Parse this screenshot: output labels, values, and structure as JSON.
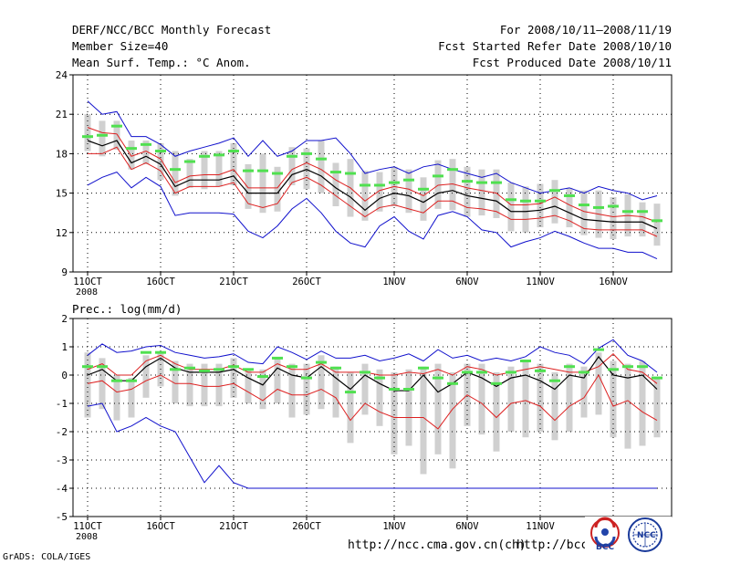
{
  "header": {
    "title": "DERF/NCC/BCC Monthly Forecast",
    "member_size": "Member Size=40",
    "variable": "Mean Surf. Temp.: °C Anom.",
    "period": "For 2008/10/11–2008/11/19",
    "started": "Fcst Started Refer Date 2008/10/10",
    "produced": "Fcst Produced Date 2008/10/11"
  },
  "footer": {
    "grads": "GrADS: COLA/IGES",
    "url1": "http://ncc.cma.gov.cn(ch)",
    "url2": "http://bcc.cma.",
    "logo_bcc": "BCC",
    "logo_ncc": "NCC"
  },
  "colors": {
    "ensemble_mean": "#000000",
    "spread": "#dd2020",
    "extreme": "#1010cc",
    "box": "#d0d0d0",
    "median": "#50e050",
    "grid": "#000000"
  },
  "chart_data": [
    {
      "type": "line",
      "title": "Mean Surf. Temp.: °C Anom.",
      "ylim": [
        9,
        24
      ],
      "yticks": [
        9,
        12,
        15,
        18,
        21,
        24
      ],
      "x": [
        1,
        2,
        3,
        4,
        5,
        6,
        7,
        8,
        9,
        10,
        11,
        12,
        13,
        14,
        15,
        16,
        17,
        18,
        19,
        20,
        21,
        22,
        23,
        24,
        25,
        26,
        27,
        28,
        29,
        30,
        31,
        32,
        33,
        34,
        35,
        36,
        37,
        38,
        39,
        40
      ],
      "xticks": [
        {
          "day": 1,
          "label": "11OCT",
          "sub": "2008"
        },
        {
          "day": 6,
          "label": "16OCT",
          "sub": ""
        },
        {
          "day": 11,
          "label": "21OCT",
          "sub": ""
        },
        {
          "day": 16,
          "label": "26OCT",
          "sub": ""
        },
        {
          "day": 22,
          "label": "1NOV",
          "sub": ""
        },
        {
          "day": 27,
          "label": "6NOV",
          "sub": ""
        },
        {
          "day": 32,
          "label": "11NOV",
          "sub": ""
        },
        {
          "day": 37,
          "label": "16NOV",
          "sub": ""
        }
      ],
      "series": [
        {
          "name": "max",
          "values": [
            22,
            21,
            21.2,
            19.3,
            19.3,
            18.7,
            17.8,
            18.2,
            18.5,
            18.8,
            19.2,
            17.8,
            19,
            17.8,
            18.2,
            19,
            19,
            19.2,
            18,
            16.5,
            16.8,
            17,
            16.5,
            17,
            17.2,
            16.8,
            16.5,
            16.2,
            16.5,
            15.8,
            15.4,
            15,
            15.2,
            15.4,
            15,
            15.5,
            15.2,
            15,
            14.5,
            14.8
          ]
        },
        {
          "name": "upper",
          "values": [
            20,
            19.6,
            19.5,
            17.8,
            18.2,
            17.6,
            15.8,
            16.3,
            16.4,
            16.4,
            16.8,
            15.4,
            15.4,
            15.4,
            16.8,
            17.3,
            16.8,
            16,
            15.4,
            14.4,
            15.2,
            15.5,
            15.3,
            14.8,
            15.6,
            15.7,
            15.4,
            15.2,
            15,
            14.1,
            14.1,
            14.2,
            14.7,
            14.1,
            13.6,
            13.4,
            13.2,
            13.3,
            13.2,
            12.8
          ]
        },
        {
          "name": "mean",
          "values": [
            19,
            18.6,
            19,
            17.3,
            17.8,
            17.2,
            15.5,
            16,
            16,
            16,
            16.3,
            15,
            15,
            15,
            16.4,
            16.8,
            16.3,
            15.4,
            14.7,
            13.7,
            14.6,
            15,
            14.8,
            14.3,
            15,
            15.2,
            14.8,
            14.6,
            14.4,
            13.6,
            13.6,
            13.7,
            14,
            13.5,
            13,
            12.9,
            12.8,
            12.8,
            12.8,
            12.3
          ]
        },
        {
          "name": "lower",
          "values": [
            18,
            18,
            18.5,
            16.8,
            17.3,
            16.7,
            15,
            15.5,
            15.5,
            15.5,
            15.8,
            14.2,
            13.9,
            14.2,
            15.8,
            16.2,
            15.6,
            14.8,
            14,
            13.2,
            13.9,
            14.1,
            13.8,
            13.5,
            14.4,
            14.4,
            13.9,
            13.8,
            13.6,
            13,
            13,
            13.1,
            13.3,
            12.9,
            12.3,
            12.2,
            12.2,
            12.2,
            12.2,
            11.7
          ]
        },
        {
          "name": "min",
          "values": [
            15.6,
            16.2,
            16.6,
            15.4,
            16.2,
            15.5,
            13.3,
            13.5,
            13.5,
            13.5,
            13.4,
            12.1,
            11.6,
            12.5,
            13.8,
            14.6,
            13.5,
            12.1,
            11.2,
            10.9,
            12.5,
            13.2,
            12.1,
            11.5,
            13.3,
            13.6,
            13.2,
            12.2,
            12,
            10.9,
            11.3,
            11.6,
            12.1,
            11.7,
            11.2,
            10.8,
            10.8,
            10.5,
            10.5,
            10
          ]
        },
        {
          "name": "median",
          "values": [
            19.3,
            19.4,
            20.1,
            18.4,
            18.7,
            18.2,
            16.8,
            17.4,
            17.8,
            17.9,
            18.2,
            16.7,
            16.7,
            16.5,
            17.8,
            18,
            17.6,
            16.6,
            16.5,
            15.6,
            15.6,
            15.8,
            16,
            15.3,
            16.3,
            16.8,
            15.9,
            15.8,
            15.8,
            14.5,
            14.4,
            14.4,
            15.2,
            14.8,
            14.1,
            13.9,
            14,
            13.6,
            13.6,
            12.9
          ]
        },
        {
          "name": "box_top",
          "values": [
            21,
            20.5,
            20.5,
            19,
            19,
            18.8,
            18.2,
            17.6,
            18.2,
            18.2,
            18.8,
            17.2,
            18,
            17,
            18.5,
            18.4,
            19,
            17.3,
            17.6,
            16.7,
            16.6,
            17,
            16.8,
            16.2,
            17.5,
            17.6,
            17,
            16.8,
            16.8,
            15.8,
            15.5,
            15.7,
            16,
            15.4,
            15.2,
            15.2,
            14.7,
            14.9,
            14.3,
            14.2
          ]
        },
        {
          "name": "box_bottom",
          "values": [
            18.2,
            17.8,
            18.3,
            16.8,
            17.2,
            16,
            14.8,
            15.4,
            15.3,
            15.5,
            15.6,
            13.8,
            13.5,
            13.6,
            15.6,
            15.3,
            15,
            14,
            13.2,
            12.9,
            13.6,
            14,
            13.5,
            12.9,
            13.8,
            13.7,
            13.2,
            13.3,
            13.1,
            12.1,
            12,
            12.4,
            12.7,
            12.4,
            11.8,
            11.6,
            11.5,
            11.7,
            11.7,
            11
          ]
        }
      ]
    },
    {
      "type": "line",
      "title": "Prec.: log(mm/d)",
      "ylim": [
        -5,
        2
      ],
      "yticks": [
        -5,
        -4,
        -3,
        -2,
        -1,
        0,
        1,
        2
      ],
      "x": [
        1,
        2,
        3,
        4,
        5,
        6,
        7,
        8,
        9,
        10,
        11,
        12,
        13,
        14,
        15,
        16,
        17,
        18,
        19,
        20,
        21,
        22,
        23,
        24,
        25,
        26,
        27,
        28,
        29,
        30,
        31,
        32,
        33,
        34,
        35,
        36,
        37,
        38,
        39,
        40
      ],
      "xticks": [
        {
          "day": 1,
          "label": "11OCT",
          "sub": "2008"
        },
        {
          "day": 6,
          "label": "16OCT",
          "sub": ""
        },
        {
          "day": 11,
          "label": "21OCT",
          "sub": ""
        },
        {
          "day": 16,
          "label": "26OCT",
          "sub": ""
        },
        {
          "day": 22,
          "label": "1NOV",
          "sub": ""
        },
        {
          "day": 27,
          "label": "6NOV",
          "sub": ""
        },
        {
          "day": 32,
          "label": "11NOV",
          "sub": ""
        },
        {
          "day": 37,
          "label": "16NOV",
          "sub": ""
        }
      ],
      "series": [
        {
          "name": "max",
          "values": [
            0.7,
            1.1,
            0.8,
            0.85,
            1,
            1.05,
            0.8,
            0.7,
            0.6,
            0.65,
            0.75,
            0.45,
            0.4,
            1,
            0.8,
            0.55,
            0.85,
            0.6,
            0.6,
            0.7,
            0.5,
            0.6,
            0.75,
            0.5,
            0.9,
            0.6,
            0.7,
            0.5,
            0.6,
            0.5,
            0.65,
            1,
            0.8,
            0.7,
            0.4,
            0.95,
            1.25,
            0.7,
            0.5,
            0.1
          ]
        },
        {
          "name": "upper",
          "values": [
            0.2,
            0.4,
            0,
            0,
            0.5,
            0.7,
            0.4,
            0.2,
            0.2,
            0.2,
            0.35,
            0.1,
            0.1,
            0.4,
            0.2,
            0.2,
            0.4,
            0.1,
            0.1,
            0.1,
            0,
            0,
            0.1,
            0.05,
            0.2,
            0,
            0.3,
            0.2,
            0,
            0.1,
            0.2,
            0.3,
            0.2,
            0.1,
            0.1,
            0.3,
            0.75,
            0.2,
            0.1,
            -0.3
          ]
        },
        {
          "name": "mean",
          "values": [
            0,
            0.2,
            -0.2,
            -0.2,
            0.3,
            0.6,
            0.25,
            0.1,
            0.1,
            0.1,
            0.2,
            -0.1,
            -0.35,
            0.25,
            0,
            -0.1,
            0.3,
            -0.1,
            -0.5,
            0,
            -0.3,
            -0.55,
            -0.55,
            0,
            -0.6,
            -0.3,
            0.1,
            -0.1,
            -0.4,
            -0.1,
            0,
            -0.2,
            -0.5,
            0,
            -0.1,
            0.65,
            0,
            -0.1,
            0,
            -0.5
          ]
        },
        {
          "name": "lower",
          "values": [
            -0.3,
            -0.2,
            -0.6,
            -0.5,
            -0.2,
            0,
            -0.3,
            -0.3,
            -0.4,
            -0.4,
            -0.3,
            -0.6,
            -0.9,
            -0.5,
            -0.7,
            -0.7,
            -0.5,
            -0.8,
            -1.6,
            -1,
            -1.3,
            -1.5,
            -1.5,
            -1.5,
            -1.9,
            -1.2,
            -0.7,
            -1,
            -1.5,
            -1,
            -0.9,
            -1.1,
            -1.6,
            -1.1,
            -0.8,
            0,
            -1.1,
            -0.9,
            -1.3,
            -1.6
          ]
        },
        {
          "name": "min",
          "values": [
            -1.1,
            -1,
            -2,
            -1.8,
            -1.5,
            -1.8,
            -2,
            -2.9,
            -3.8,
            -3.2,
            -3.8,
            -4,
            -4,
            -4,
            -4,
            -4,
            -4,
            -4,
            -4,
            -4,
            -4,
            -4,
            -4,
            -4,
            -4,
            -4,
            -4,
            -4,
            -4,
            -4,
            -4,
            -4,
            -4,
            -4,
            -4,
            -4,
            -4,
            -4,
            -4,
            -4
          ]
        },
        {
          "name": "median",
          "values": [
            0.3,
            0.3,
            -0.2,
            -0.2,
            0.8,
            0.8,
            0.2,
            0.25,
            0.15,
            0.2,
            0.3,
            0.2,
            -0.05,
            0.6,
            0.3,
            -0.1,
            0.45,
            0.25,
            -0.6,
            0.1,
            -0.1,
            -0.5,
            -0.5,
            0.25,
            -0.1,
            -0.3,
            0.1,
            0.1,
            -0.3,
            0.1,
            0.5,
            0.15,
            -0.2,
            0.3,
            0.1,
            0.9,
            0.2,
            0.3,
            0.3,
            -0.1
          ]
        },
        {
          "name": "box_top",
          "values": [
            0.8,
            0.6,
            0,
            -0.1,
            0.7,
            0.8,
            0.5,
            0.4,
            0.4,
            0.4,
            0.6,
            0.2,
            0.2,
            0.6,
            0.4,
            0.4,
            0.7,
            0.3,
            0.1,
            0.4,
            0.2,
            0.1,
            0.2,
            0.3,
            0.4,
            0.1,
            0.4,
            0.4,
            0.1,
            0.3,
            0.5,
            0.4,
            0.1,
            0.4,
            0.3,
            0.8,
            0.5,
            0.4,
            0.5,
            -0.1
          ]
        },
        {
          "name": "box_bottom",
          "values": [
            -1.5,
            -1.2,
            -1.6,
            -1.5,
            -0.8,
            -0.4,
            -1,
            -1.1,
            -1.1,
            -1.1,
            -0.8,
            -1,
            -1.2,
            -1,
            -1.5,
            -1.4,
            -1.2,
            -1.5,
            -2.4,
            -1.4,
            -1.8,
            -2.8,
            -2.5,
            -3.5,
            -2.8,
            -3.3,
            -1.8,
            -2.1,
            -2.7,
            -2,
            -2.2,
            -2,
            -2.3,
            -2,
            -1.5,
            -1.4,
            -2.2,
            -2.6,
            -2.5,
            -2.2
          ]
        }
      ]
    }
  ]
}
